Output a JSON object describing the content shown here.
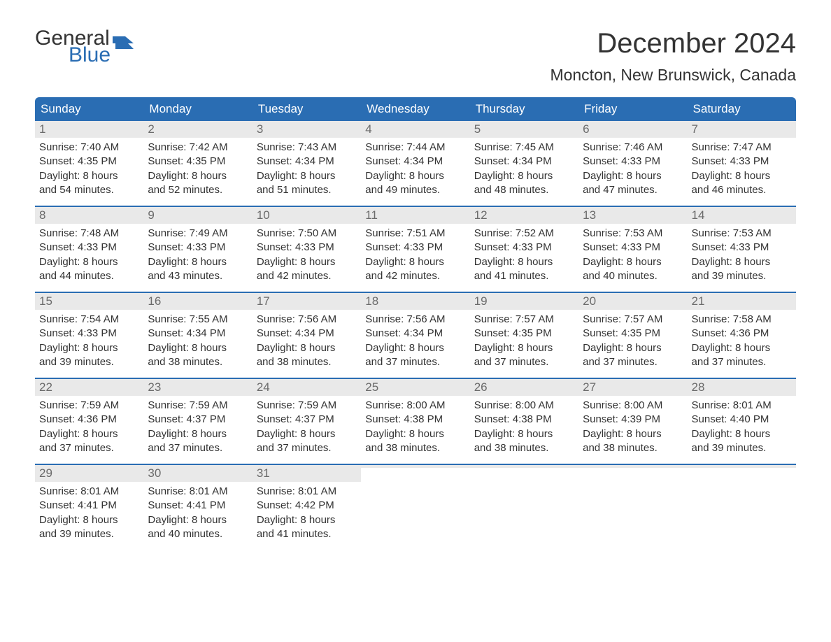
{
  "logo": {
    "general": "General",
    "blue": "Blue",
    "flag_color": "#2a6db3"
  },
  "title": "December 2024",
  "location": "Moncton, New Brunswick, Canada",
  "colors": {
    "header_bg": "#2a6db3",
    "daynum_bg": "#e9e9e9",
    "daynum_color": "#6b6b6b",
    "text": "#333333",
    "week_border": "#2a6db3"
  },
  "weekdays": [
    "Sunday",
    "Monday",
    "Tuesday",
    "Wednesday",
    "Thursday",
    "Friday",
    "Saturday"
  ],
  "days": [
    {
      "n": "1",
      "sunrise": "Sunrise: 7:40 AM",
      "sunset": "Sunset: 4:35 PM",
      "d1": "Daylight: 8 hours",
      "d2": "and 54 minutes."
    },
    {
      "n": "2",
      "sunrise": "Sunrise: 7:42 AM",
      "sunset": "Sunset: 4:35 PM",
      "d1": "Daylight: 8 hours",
      "d2": "and 52 minutes."
    },
    {
      "n": "3",
      "sunrise": "Sunrise: 7:43 AM",
      "sunset": "Sunset: 4:34 PM",
      "d1": "Daylight: 8 hours",
      "d2": "and 51 minutes."
    },
    {
      "n": "4",
      "sunrise": "Sunrise: 7:44 AM",
      "sunset": "Sunset: 4:34 PM",
      "d1": "Daylight: 8 hours",
      "d2": "and 49 minutes."
    },
    {
      "n": "5",
      "sunrise": "Sunrise: 7:45 AM",
      "sunset": "Sunset: 4:34 PM",
      "d1": "Daylight: 8 hours",
      "d2": "and 48 minutes."
    },
    {
      "n": "6",
      "sunrise": "Sunrise: 7:46 AM",
      "sunset": "Sunset: 4:33 PM",
      "d1": "Daylight: 8 hours",
      "d2": "and 47 minutes."
    },
    {
      "n": "7",
      "sunrise": "Sunrise: 7:47 AM",
      "sunset": "Sunset: 4:33 PM",
      "d1": "Daylight: 8 hours",
      "d2": "and 46 minutes."
    },
    {
      "n": "8",
      "sunrise": "Sunrise: 7:48 AM",
      "sunset": "Sunset: 4:33 PM",
      "d1": "Daylight: 8 hours",
      "d2": "and 44 minutes."
    },
    {
      "n": "9",
      "sunrise": "Sunrise: 7:49 AM",
      "sunset": "Sunset: 4:33 PM",
      "d1": "Daylight: 8 hours",
      "d2": "and 43 minutes."
    },
    {
      "n": "10",
      "sunrise": "Sunrise: 7:50 AM",
      "sunset": "Sunset: 4:33 PM",
      "d1": "Daylight: 8 hours",
      "d2": "and 42 minutes."
    },
    {
      "n": "11",
      "sunrise": "Sunrise: 7:51 AM",
      "sunset": "Sunset: 4:33 PM",
      "d1": "Daylight: 8 hours",
      "d2": "and 42 minutes."
    },
    {
      "n": "12",
      "sunrise": "Sunrise: 7:52 AM",
      "sunset": "Sunset: 4:33 PM",
      "d1": "Daylight: 8 hours",
      "d2": "and 41 minutes."
    },
    {
      "n": "13",
      "sunrise": "Sunrise: 7:53 AM",
      "sunset": "Sunset: 4:33 PM",
      "d1": "Daylight: 8 hours",
      "d2": "and 40 minutes."
    },
    {
      "n": "14",
      "sunrise": "Sunrise: 7:53 AM",
      "sunset": "Sunset: 4:33 PM",
      "d1": "Daylight: 8 hours",
      "d2": "and 39 minutes."
    },
    {
      "n": "15",
      "sunrise": "Sunrise: 7:54 AM",
      "sunset": "Sunset: 4:33 PM",
      "d1": "Daylight: 8 hours",
      "d2": "and 39 minutes."
    },
    {
      "n": "16",
      "sunrise": "Sunrise: 7:55 AM",
      "sunset": "Sunset: 4:34 PM",
      "d1": "Daylight: 8 hours",
      "d2": "and 38 minutes."
    },
    {
      "n": "17",
      "sunrise": "Sunrise: 7:56 AM",
      "sunset": "Sunset: 4:34 PM",
      "d1": "Daylight: 8 hours",
      "d2": "and 38 minutes."
    },
    {
      "n": "18",
      "sunrise": "Sunrise: 7:56 AM",
      "sunset": "Sunset: 4:34 PM",
      "d1": "Daylight: 8 hours",
      "d2": "and 37 minutes."
    },
    {
      "n": "19",
      "sunrise": "Sunrise: 7:57 AM",
      "sunset": "Sunset: 4:35 PM",
      "d1": "Daylight: 8 hours",
      "d2": "and 37 minutes."
    },
    {
      "n": "20",
      "sunrise": "Sunrise: 7:57 AM",
      "sunset": "Sunset: 4:35 PM",
      "d1": "Daylight: 8 hours",
      "d2": "and 37 minutes."
    },
    {
      "n": "21",
      "sunrise": "Sunrise: 7:58 AM",
      "sunset": "Sunset: 4:36 PM",
      "d1": "Daylight: 8 hours",
      "d2": "and 37 minutes."
    },
    {
      "n": "22",
      "sunrise": "Sunrise: 7:59 AM",
      "sunset": "Sunset: 4:36 PM",
      "d1": "Daylight: 8 hours",
      "d2": "and 37 minutes."
    },
    {
      "n": "23",
      "sunrise": "Sunrise: 7:59 AM",
      "sunset": "Sunset: 4:37 PM",
      "d1": "Daylight: 8 hours",
      "d2": "and 37 minutes."
    },
    {
      "n": "24",
      "sunrise": "Sunrise: 7:59 AM",
      "sunset": "Sunset: 4:37 PM",
      "d1": "Daylight: 8 hours",
      "d2": "and 37 minutes."
    },
    {
      "n": "25",
      "sunrise": "Sunrise: 8:00 AM",
      "sunset": "Sunset: 4:38 PM",
      "d1": "Daylight: 8 hours",
      "d2": "and 38 minutes."
    },
    {
      "n": "26",
      "sunrise": "Sunrise: 8:00 AM",
      "sunset": "Sunset: 4:38 PM",
      "d1": "Daylight: 8 hours",
      "d2": "and 38 minutes."
    },
    {
      "n": "27",
      "sunrise": "Sunrise: 8:00 AM",
      "sunset": "Sunset: 4:39 PM",
      "d1": "Daylight: 8 hours",
      "d2": "and 38 minutes."
    },
    {
      "n": "28",
      "sunrise": "Sunrise: 8:01 AM",
      "sunset": "Sunset: 4:40 PM",
      "d1": "Daylight: 8 hours",
      "d2": "and 39 minutes."
    },
    {
      "n": "29",
      "sunrise": "Sunrise: 8:01 AM",
      "sunset": "Sunset: 4:41 PM",
      "d1": "Daylight: 8 hours",
      "d2": "and 39 minutes."
    },
    {
      "n": "30",
      "sunrise": "Sunrise: 8:01 AM",
      "sunset": "Sunset: 4:41 PM",
      "d1": "Daylight: 8 hours",
      "d2": "and 40 minutes."
    },
    {
      "n": "31",
      "sunrise": "Sunrise: 8:01 AM",
      "sunset": "Sunset: 4:42 PM",
      "d1": "Daylight: 8 hours",
      "d2": "and 41 minutes."
    }
  ]
}
